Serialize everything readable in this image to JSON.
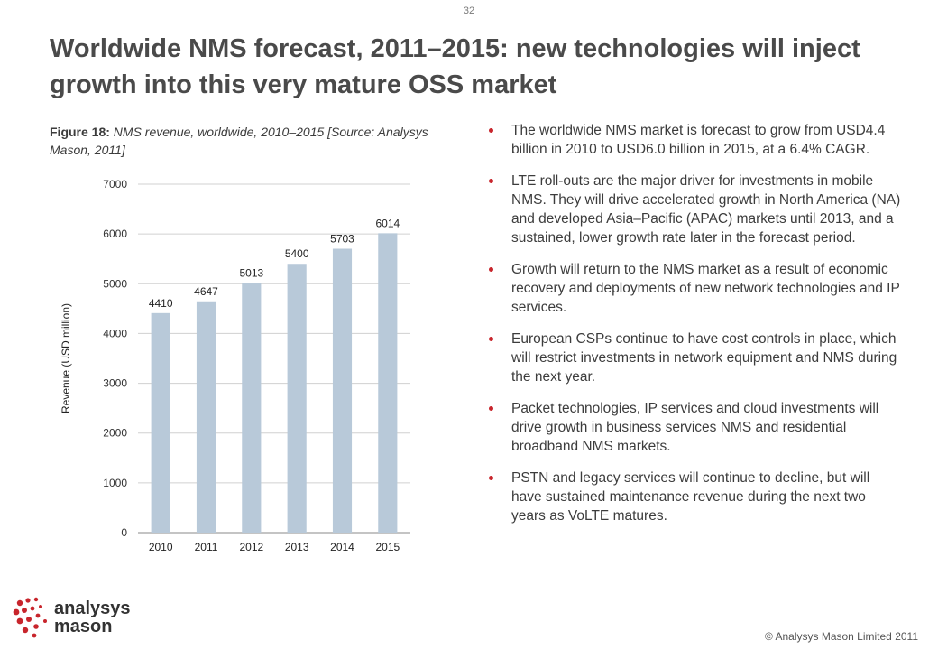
{
  "page": {
    "number": "32",
    "title": "Worldwide NMS forecast, 2011–2015: new technologies will inject growth into this very mature OSS market"
  },
  "figure": {
    "label": "Figure 18:",
    "caption": "NMS revenue, worldwide, 2010–2015 [Source: Analysys Mason, 2011]"
  },
  "chart_data": {
    "type": "bar",
    "categories": [
      "2010",
      "2011",
      "2012",
      "2013",
      "2014",
      "2015"
    ],
    "values": [
      4410,
      4647,
      5013,
      5400,
      5703,
      6014
    ],
    "data_labels": [
      "4410",
      "4647",
      "5013",
      "5400",
      "5703",
      "6014"
    ],
    "title": "",
    "xlabel": "",
    "ylabel": "Revenue (USD million)",
    "ylim": [
      0,
      7000
    ],
    "yticks": [
      0,
      1000,
      2000,
      3000,
      4000,
      5000,
      6000,
      7000
    ],
    "grid": true,
    "legend": "none",
    "bar_color": "#b8c9d9",
    "grid_color": "#d0d0d0"
  },
  "bullets": [
    "The worldwide NMS market is forecast to grow from USD4.4 billion in 2010 to USD6.0 billion in 2015, at a 6.4% CAGR.",
    "LTE roll-outs are the major driver for investments in mobile NMS. They will drive accelerated growth in North America (NA) and developed Asia–Pacific (APAC) markets until 2013, and a sustained, lower growth rate later in the forecast period.",
    "Growth will return to the NMS market as a result of economic recovery and deployments of new network technologies and IP services.",
    "European CSPs continue to have cost controls in place, which will restrict investments in network equipment and NMS during the next year.",
    "Packet technologies, IP services and cloud investments will drive growth in business services NMS and residential broadband NMS markets.",
    "PSTN and legacy services will continue to decline, but will have sustained maintenance revenue during the next two years as VoLTE matures."
  ],
  "footer": {
    "logo_line1": "analysys",
    "logo_line2": "mason",
    "copyright": "© Analysys Mason Limited 2011"
  },
  "colors": {
    "bullet": "#c8252c",
    "logo_dots": "#c8252c",
    "title": "#4a4a4a"
  }
}
